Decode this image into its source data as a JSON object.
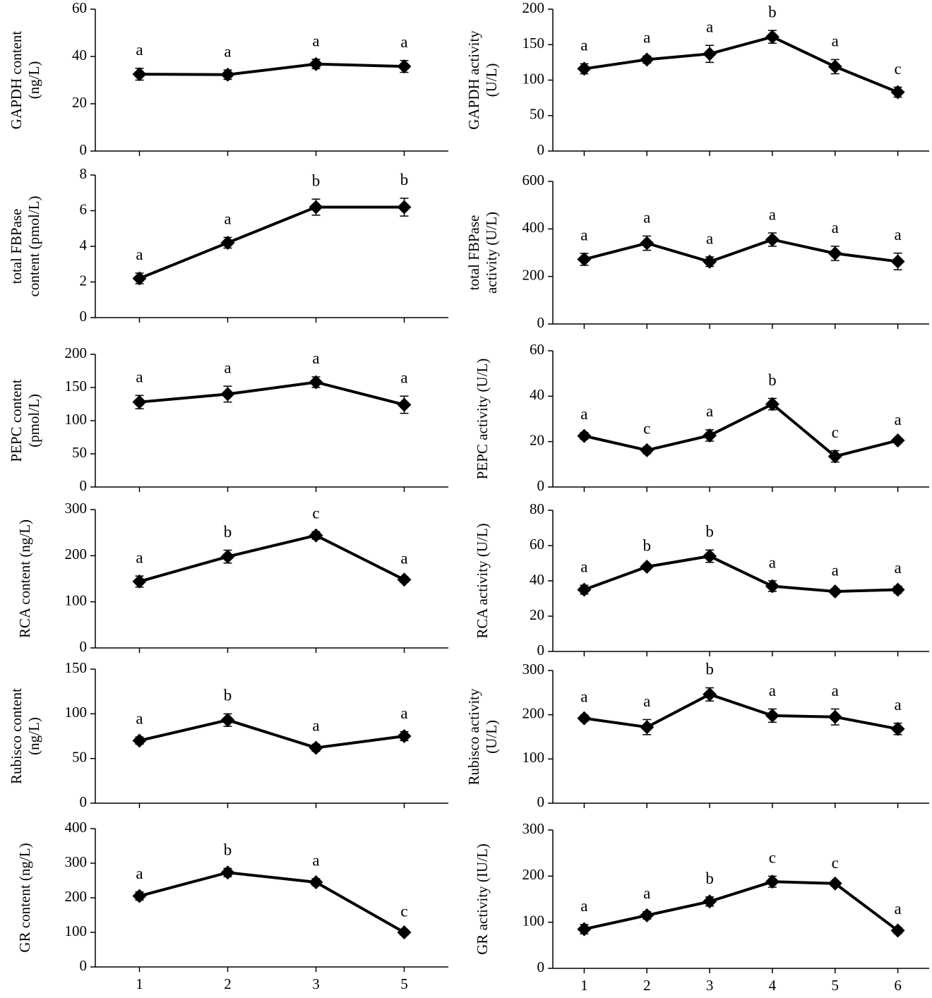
{
  "chart_data": [
    {
      "type": "line",
      "ylabel": [
        "GAPDH content",
        "(ng/L)"
      ],
      "categories": [
        null,
        null,
        null,
        null
      ],
      "values": [
        32.5,
        32.3,
        36.8,
        35.8
      ],
      "errors": [
        2.5,
        2,
        2,
        2.5
      ],
      "letters": [
        "a",
        "a",
        "a",
        "a"
      ],
      "ylim": [
        0,
        60
      ],
      "yticks": [
        0,
        20,
        40,
        60
      ],
      "color": "#000000"
    },
    {
      "type": "line",
      "ylabel": [
        "GAPDH activity",
        "(U/L)"
      ],
      "categories": [
        null,
        null,
        null,
        null,
        null,
        null
      ],
      "values": [
        116,
        129,
        137,
        161,
        119,
        83
      ],
      "errors": [
        7,
        5,
        12,
        9,
        10,
        7
      ],
      "letters": [
        "a",
        "a",
        "a",
        "b",
        "a",
        "c"
      ],
      "ylim": [
        0,
        200
      ],
      "yticks": [
        0,
        50,
        100,
        150,
        200
      ],
      "color": "#000000"
    },
    {
      "type": "line",
      "ylabel": [
        "total FBPase",
        "content (pmol/L)"
      ],
      "categories": [
        null,
        null,
        null,
        null
      ],
      "values": [
        2.2,
        4.2,
        6.2,
        6.2
      ],
      "errors": [
        0.3,
        0.3,
        0.45,
        0.5
      ],
      "letters": [
        "a",
        "a",
        "b",
        "b"
      ],
      "ylim": [
        0,
        8
      ],
      "yticks": [
        0,
        2,
        4,
        6,
        8
      ],
      "color": "#000000"
    },
    {
      "type": "line",
      "ylabel": [
        "total FBPase",
        "activity (U/L)"
      ],
      "categories": [
        null,
        null,
        null,
        null,
        null,
        null
      ],
      "values": [
        272,
        340,
        262,
        355,
        297,
        263
      ],
      "errors": [
        25,
        30,
        20,
        28,
        30,
        35
      ],
      "letters": [
        "a",
        "a",
        "a",
        "a",
        "a",
        "a"
      ],
      "ylim": [
        0,
        600
      ],
      "yticks": [
        0,
        200,
        400,
        600
      ],
      "color": "#000000"
    },
    {
      "type": "line",
      "ylabel": [
        "PEPC content",
        "(pmol/L)"
      ],
      "categories": [
        null,
        null,
        null,
        null
      ],
      "values": [
        128,
        140,
        158,
        124
      ],
      "errors": [
        10,
        12,
        8,
        13
      ],
      "letters": [
        "a",
        "a",
        "a",
        "a"
      ],
      "ylim": [
        0,
        200
      ],
      "yticks": [
        0,
        50,
        100,
        150,
        200
      ],
      "color": "#000000"
    },
    {
      "type": "line",
      "ylabel": [
        "PEPC activity (U/L)"
      ],
      "categories": [
        null,
        null,
        null,
        null,
        null,
        null
      ],
      "values": [
        22.5,
        16.2,
        22.7,
        36.5,
        13.5,
        20.5
      ],
      "errors": [
        1.5,
        1.5,
        2.5,
        2.5,
        2.5,
        1
      ],
      "letters": [
        "a",
        "c",
        "a",
        "b",
        "c",
        "a"
      ],
      "ylim": [
        0,
        60
      ],
      "yticks": [
        0,
        20,
        40,
        60
      ],
      "color": "#000000"
    },
    {
      "type": "line",
      "ylabel": [
        "RCA content (ng/L)"
      ],
      "categories": [
        null,
        null,
        null,
        null
      ],
      "values": [
        144,
        198,
        244,
        148
      ],
      "errors": [
        12,
        14,
        8,
        6
      ],
      "letters": [
        "a",
        "b",
        "c",
        "a"
      ],
      "ylim": [
        0,
        300
      ],
      "yticks": [
        0,
        100,
        200,
        300
      ],
      "color": "#000000"
    },
    {
      "type": "line",
      "ylabel": [
        "RCA activity (U/L)"
      ],
      "categories": [
        null,
        null,
        null,
        null,
        null,
        null
      ],
      "values": [
        35,
        48,
        54,
        37,
        34,
        35
      ],
      "errors": [
        2.5,
        1.5,
        3.5,
        3,
        1.5,
        2
      ],
      "letters": [
        "a",
        "b",
        "b",
        "a",
        "a",
        "a"
      ],
      "ylim": [
        0,
        80
      ],
      "yticks": [
        0,
        20,
        40,
        60,
        80
      ],
      "color": "#000000"
    },
    {
      "type": "line",
      "ylabel": [
        "Rubisco content",
        "(ng/L)"
      ],
      "categories": [
        null,
        null,
        null,
        null
      ],
      "values": [
        70,
        93,
        62,
        75
      ],
      "errors": [
        4,
        7,
        4,
        5
      ],
      "letters": [
        "a",
        "b",
        "a",
        "a"
      ],
      "ylim": [
        0,
        150
      ],
      "yticks": [
        0,
        50,
        100,
        150
      ],
      "color": "#000000"
    },
    {
      "type": "line",
      "ylabel": [
        "Rubisco activity",
        "(U/L)"
      ],
      "categories": [
        null,
        null,
        null,
        null,
        null,
        null
      ],
      "values": [
        192,
        172,
        246,
        198,
        195,
        168
      ],
      "errors": [
        7,
        17,
        15,
        15,
        18,
        13
      ],
      "letters": [
        "a",
        "a",
        "b",
        "a",
        "a",
        "a"
      ],
      "ylim": [
        0,
        300
      ],
      "yticks": [
        0,
        100,
        200,
        300
      ],
      "color": "#000000"
    },
    {
      "type": "line",
      "ylabel": [
        "GR content (ng/L)"
      ],
      "categories": [
        "1",
        "2",
        "3",
        "5"
      ],
      "values": [
        205,
        273,
        245,
        100
      ],
      "errors": [
        12,
        12,
        10,
        8
      ],
      "letters": [
        "a",
        "b",
        "a",
        "c"
      ],
      "ylim": [
        0,
        400
      ],
      "yticks": [
        0,
        100,
        200,
        300,
        400
      ],
      "color": "#000000"
    },
    {
      "type": "line",
      "ylabel": [
        "GR activity (IU/L)"
      ],
      "categories": [
        "1",
        "2",
        "3",
        "4",
        "5",
        "6"
      ],
      "values": [
        85,
        115,
        145,
        188,
        184,
        82
      ],
      "errors": [
        10,
        8,
        10,
        12,
        5,
        7
      ],
      "letters": [
        "a",
        "a",
        "b",
        "c",
        "c",
        "a"
      ],
      "ylim": [
        0,
        300
      ],
      "yticks": [
        0,
        100,
        200,
        300
      ],
      "color": "#000000"
    }
  ]
}
